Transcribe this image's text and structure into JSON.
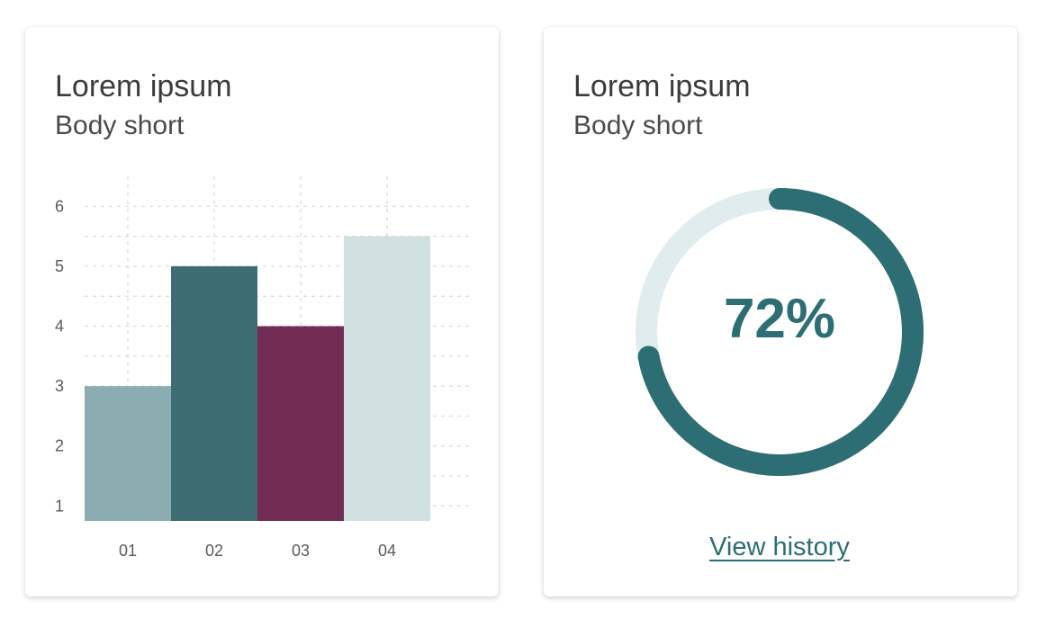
{
  "cards": [
    {
      "title": "Lorem ipsum",
      "subtitle": "Body short"
    },
    {
      "title": "Lorem ipsum",
      "subtitle": "Body short",
      "progress_label": "72%",
      "progress_value": 0.72,
      "link_label": "View history"
    }
  ],
  "colors": {
    "grid": "#d9d9d9",
    "axis_text": "#5a5a5a",
    "donut_track": "#e0ecee",
    "donut_fill": "#2d6e74",
    "accent_text": "#2d6e74"
  },
  "chart_data": {
    "type": "bar",
    "categories": [
      "01",
      "02",
      "03",
      "04"
    ],
    "values": [
      3,
      5,
      4,
      5.5
    ],
    "bar_colors": [
      "#8badb1",
      "#3e6c73",
      "#722c53",
      "#d0dfe0"
    ],
    "yticks": [
      1,
      2,
      3,
      4,
      5,
      6
    ],
    "ylim": [
      0.75,
      6.5
    ],
    "title": "",
    "xlabel": "",
    "ylabel": "",
    "grid": true,
    "grid_style": "dashed"
  }
}
